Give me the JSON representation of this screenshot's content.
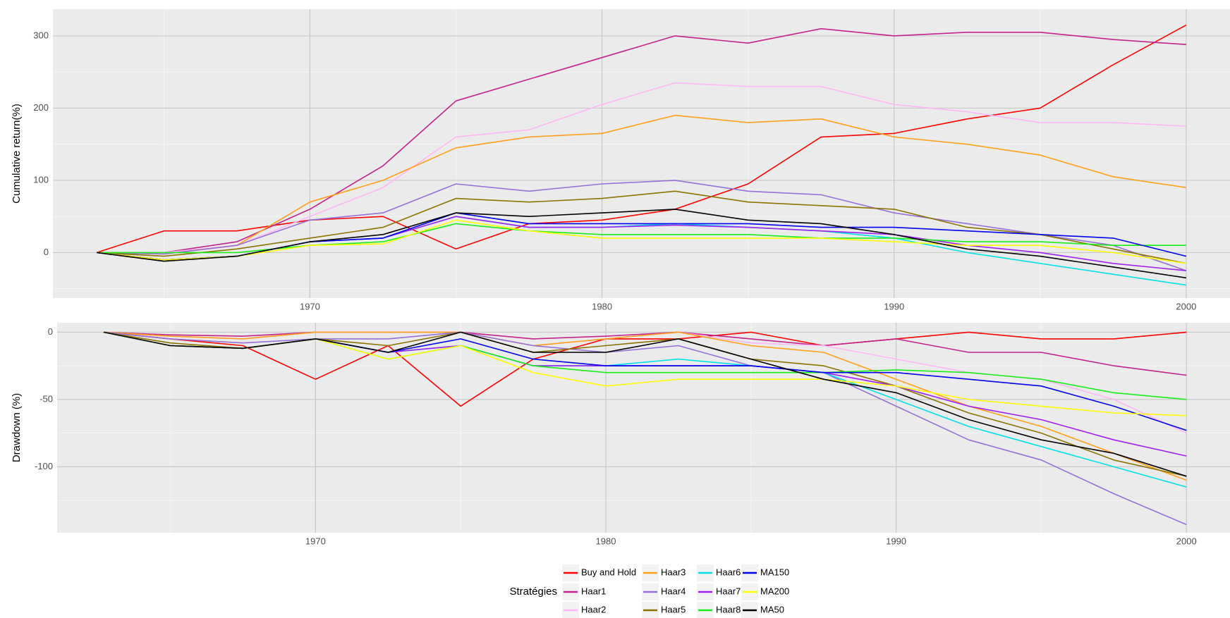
{
  "chart_data": [
    {
      "type": "line",
      "ylabel": "Cumulative return(%)",
      "x": [
        1962.7,
        1965,
        1967.5,
        1970,
        1972.5,
        1975,
        1977.5,
        1980,
        1982.5,
        1985,
        1987.5,
        1990,
        1992.5,
        1995,
        1997.5,
        2000
      ],
      "xlim": [
        1961.2,
        2001.5
      ],
      "xticks": [
        1970,
        1980,
        1990,
        2000
      ],
      "ylim": [
        -63,
        337
      ],
      "yticks": [
        0,
        100,
        200,
        300
      ],
      "grid": true,
      "series": [
        {
          "name": "Buy and Hold",
          "color": "#ff0000",
          "values": [
            0,
            30,
            30,
            45,
            50,
            5,
            40,
            45,
            60,
            95,
            160,
            165,
            185,
            200,
            260,
            315
          ]
        },
        {
          "name": "Haar1",
          "color": "#c2228a",
          "values": [
            0,
            0,
            15,
            60,
            120,
            210,
            240,
            270,
            300,
            290,
            310,
            300,
            305,
            305,
            295,
            288
          ]
        },
        {
          "name": "Haar2",
          "color": "#ffb6f5",
          "values": [
            0,
            0,
            10,
            50,
            90,
            160,
            170,
            205,
            235,
            230,
            230,
            205,
            195,
            180,
            180,
            175
          ]
        },
        {
          "name": "Haar3",
          "color": "#ff9f1a",
          "values": [
            0,
            -2,
            10,
            70,
            100,
            145,
            160,
            165,
            190,
            180,
            185,
            160,
            150,
            135,
            105,
            90
          ]
        },
        {
          "name": "Haar4",
          "color": "#9470d8",
          "values": [
            0,
            -2,
            10,
            45,
            55,
            95,
            85,
            95,
            100,
            85,
            80,
            55,
            40,
            25,
            10,
            -25
          ]
        },
        {
          "name": "Haar5",
          "color": "#8b7300",
          "values": [
            0,
            -5,
            5,
            20,
            35,
            75,
            70,
            75,
            85,
            70,
            65,
            60,
            35,
            25,
            5,
            -15
          ]
        },
        {
          "name": "Haar6",
          "color": "#00e0e6",
          "values": [
            0,
            -10,
            -5,
            15,
            20,
            50,
            35,
            35,
            40,
            35,
            30,
            20,
            0,
            -15,
            -30,
            -45
          ]
        },
        {
          "name": "Haar7",
          "color": "#a020f0",
          "values": [
            0,
            -10,
            -5,
            15,
            20,
            50,
            35,
            35,
            38,
            35,
            30,
            25,
            10,
            0,
            -15,
            -25
          ]
        },
        {
          "name": "Haar8",
          "color": "#1aee1a",
          "values": [
            0,
            0,
            0,
            10,
            15,
            40,
            30,
            25,
            25,
            25,
            20,
            20,
            15,
            15,
            10,
            10
          ]
        },
        {
          "name": "MA150",
          "color": "#0000ee",
          "values": [
            0,
            -10,
            -5,
            15,
            20,
            55,
            40,
            40,
            40,
            40,
            35,
            35,
            30,
            25,
            20,
            -5
          ]
        },
        {
          "name": "MA200",
          "color": "#ffff00",
          "values": [
            0,
            -10,
            -5,
            10,
            12,
            45,
            30,
            20,
            20,
            20,
            20,
            15,
            10,
            10,
            0,
            -15
          ]
        },
        {
          "name": "MA50",
          "color": "#000000",
          "values": [
            0,
            -12,
            -5,
            15,
            25,
            55,
            50,
            55,
            60,
            45,
            40,
            25,
            5,
            -5,
            -20,
            -35
          ]
        }
      ]
    },
    {
      "type": "line",
      "ylabel": "Drawdown (%)",
      "x": [
        1962.7,
        1965,
        1967.5,
        1970,
        1972.5,
        1975,
        1977.5,
        1980,
        1982.5,
        1985,
        1987.5,
        1990,
        1992.5,
        1995,
        1997.5,
        2000
      ],
      "xlim": [
        1961.1,
        2001.5
      ],
      "xticks": [
        1970,
        1980,
        1990,
        2000
      ],
      "ylim": [
        -149,
        7
      ],
      "yticks": [
        -100,
        -50,
        0
      ],
      "grid": true,
      "series": [
        {
          "values": [
            0,
            -5,
            -10,
            -35,
            -10,
            -55,
            -20,
            -5,
            -5,
            0,
            -10,
            -5,
            0,
            -5,
            -5,
            0
          ]
        },
        {
          "values": [
            0,
            -2,
            -3,
            0,
            0,
            0,
            -5,
            -3,
            0,
            -5,
            -10,
            -5,
            -15,
            -15,
            -25,
            -32
          ]
        },
        {
          "values": [
            0,
            -3,
            -5,
            0,
            0,
            0,
            -10,
            -5,
            0,
            -8,
            -10,
            -20,
            -30,
            -35,
            -50,
            -75
          ]
        },
        {
          "values": [
            0,
            -3,
            -5,
            0,
            0,
            0,
            -10,
            -5,
            0,
            -10,
            -15,
            -35,
            -55,
            -70,
            -90,
            -110
          ]
        },
        {
          "values": [
            0,
            -5,
            -8,
            -5,
            -5,
            0,
            -10,
            -15,
            -10,
            -25,
            -30,
            -55,
            -80,
            -95,
            -120,
            -143
          ]
        },
        {
          "values": [
            0,
            -8,
            -12,
            -5,
            -10,
            0,
            -15,
            -10,
            -5,
            -20,
            -25,
            -40,
            -60,
            -75,
            -95,
            -107
          ]
        },
        {
          "values": [
            0,
            -10,
            -12,
            -5,
            -15,
            -10,
            -25,
            -25,
            -20,
            -25,
            -30,
            -50,
            -70,
            -85,
            -100,
            -115
          ]
        },
        {
          "values": [
            0,
            -10,
            -12,
            -5,
            -15,
            -10,
            -25,
            -25,
            -25,
            -25,
            -30,
            -40,
            -55,
            -65,
            -80,
            -92
          ]
        },
        {
          "values": [
            0,
            -10,
            -12,
            -5,
            -20,
            -10,
            -25,
            -30,
            -30,
            -30,
            -30,
            -28,
            -30,
            -35,
            -45,
            -50
          ]
        },
        {
          "values": [
            0,
            -10,
            -12,
            -5,
            -15,
            -5,
            -20,
            -25,
            -25,
            -25,
            -30,
            -30,
            -35,
            -40,
            -55,
            -73
          ]
        },
        {
          "values": [
            0,
            -10,
            -12,
            -5,
            -20,
            -10,
            -30,
            -40,
            -35,
            -35,
            -35,
            -40,
            -50,
            -55,
            -60,
            -62
          ]
        },
        {
          "values": [
            0,
            -10,
            -12,
            -5,
            -15,
            0,
            -15,
            -15,
            -5,
            -20,
            -35,
            -45,
            -65,
            -80,
            -90,
            -107
          ]
        }
      ]
    }
  ],
  "legend": {
    "title": "Stratégies"
  }
}
